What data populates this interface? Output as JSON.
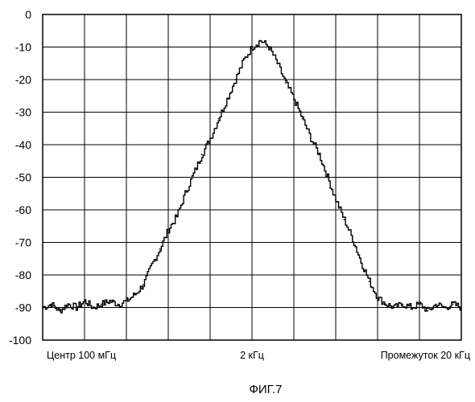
{
  "chart_data": {
    "type": "line",
    "caption": "ФИГ.7",
    "xlim": [
      -10,
      10
    ],
    "ylim": [
      -100,
      0
    ],
    "y_ticks": [
      "0",
      "-10",
      "-20",
      "-30",
      "-40",
      "-50",
      "-60",
      "-70",
      "-80",
      "-90",
      "-100"
    ],
    "x_labels": {
      "left": "Центр 100 мГц",
      "center": "2 кГц",
      "right": "Промежуток 20 кГц"
    },
    "grid": true,
    "series": [
      {
        "style": "step",
        "color": "#000000",
        "x": [
          -10,
          -9.6,
          -9.2,
          -8.8,
          -8.4,
          -8.0,
          -7.6,
          -7.2,
          -6.8,
          -6.4,
          -6.0,
          -5.6,
          -5.2,
          -4.8,
          -4.4,
          -4.0,
          -3.6,
          -3.2,
          -2.8,
          -2.4,
          -2.0,
          -1.6,
          -1.2,
          -0.8,
          -0.4,
          0.0,
          0.4,
          0.8,
          1.2,
          1.6,
          2.0,
          2.4,
          2.8,
          3.2,
          3.6,
          4.0,
          4.4,
          4.8,
          5.2,
          5.6,
          6.0,
          6.4,
          6.8,
          7.2,
          7.6,
          8.0,
          8.4,
          8.8,
          9.2,
          9.6,
          10.0
        ],
        "y": [
          -90,
          -89,
          -91,
          -89,
          -90,
          -88,
          -90,
          -89,
          -88,
          -89,
          -88,
          -86,
          -83,
          -77,
          -72,
          -66,
          -62,
          -55,
          -49,
          -43,
          -38,
          -32,
          -26,
          -20,
          -14,
          -10,
          -8,
          -10,
          -15,
          -21,
          -26,
          -32,
          -38,
          -43,
          -50,
          -57,
          -63,
          -69,
          -76,
          -82,
          -87,
          -89,
          -90,
          -89,
          -90,
          -89,
          -91,
          -89,
          -90,
          -89,
          -90
        ]
      }
    ]
  }
}
